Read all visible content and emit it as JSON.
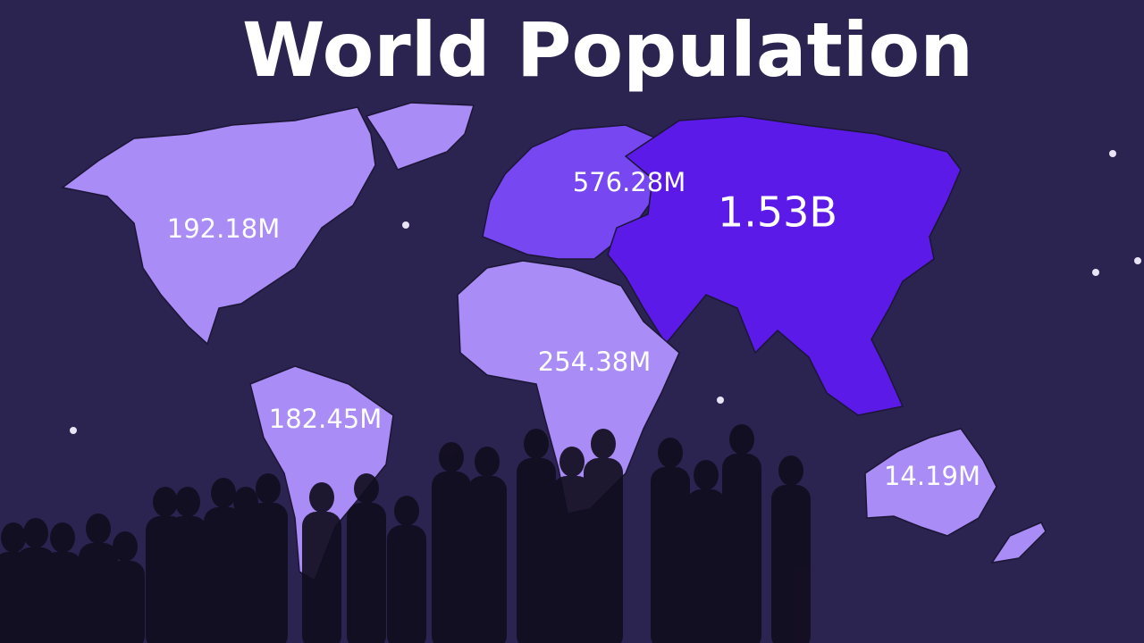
{
  "title": "World Population",
  "regions": [
    {
      "label": "192.18M"
    },
    {
      "label": "576.28M"
    },
    {
      "label": "1.53B"
    },
    {
      "label": "254.38M"
    },
    {
      "label": "182.45M"
    },
    {
      "label": "14.19M"
    }
  ]
}
